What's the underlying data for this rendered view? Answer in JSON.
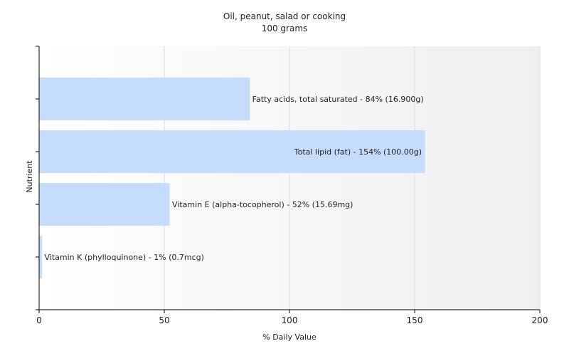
{
  "chart_data": {
    "type": "bar",
    "orientation": "horizontal",
    "title": "Oil, peanut, salad or cooking",
    "subtitle": "100 grams",
    "xlabel": "% Daily Value",
    "ylabel": "Nutrient",
    "xlim": [
      0,
      200
    ],
    "xticks": [
      0,
      50,
      100,
      150,
      200
    ],
    "grid": true,
    "bar_color": "#c5dcfc",
    "categories": [
      "Fatty acids, total saturated",
      "Total lipid (fat)",
      "Vitamin E (alpha-tocopherol)",
      "Vitamin K (phylloquinone)"
    ],
    "values": [
      84,
      154,
      52,
      1
    ],
    "labels": [
      "Fatty acids, total saturated - 84% (16.900g)",
      "Total lipid (fat) - 154% (100.00g)",
      "Vitamin E (alpha-tocopherol) - 52% (15.69mg)",
      "Vitamin K (phylloquinone) - 1% (0.7mcg)"
    ]
  }
}
